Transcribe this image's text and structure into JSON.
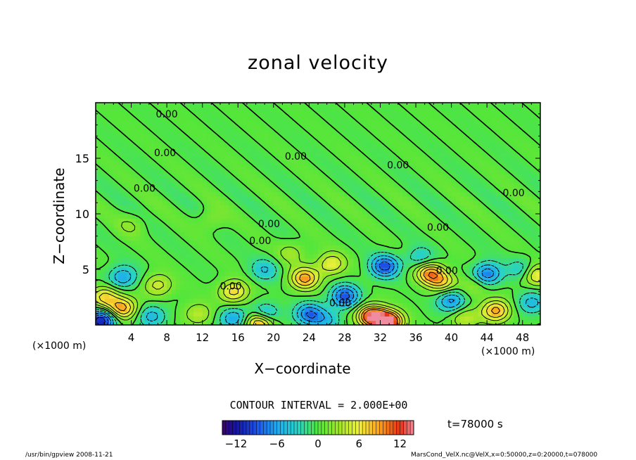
{
  "chart_data": {
    "type": "heatmap",
    "title": "zonal velocity",
    "xlabel": "X−coordinate",
    "ylabel": "Z−coordinate",
    "x_unit_label_left": "(×1000 m)",
    "x_unit_label_right": "(×1000 m)",
    "xlim": [
      0,
      50
    ],
    "ylim": [
      0,
      20
    ],
    "xticks": [
      4,
      8,
      12,
      16,
      20,
      24,
      28,
      32,
      36,
      40,
      44,
      48
    ],
    "yticks": [
      5,
      10,
      15
    ],
    "contour_interval_text": "CONTOUR INTERVAL = 2.000E+00",
    "time_label": "t=78000 s",
    "colorbar": {
      "range": [
        -14,
        14
      ],
      "ticks": [
        -12,
        -6,
        0,
        6,
        12
      ]
    },
    "contour_labels": [
      {
        "text": "0.00",
        "x": 8.0,
        "z": 19.0
      },
      {
        "text": "0.00",
        "x": 7.8,
        "z": 15.5
      },
      {
        "text": "0.00",
        "x": 22.5,
        "z": 15.2
      },
      {
        "text": "0.00",
        "x": 34.0,
        "z": 14.4
      },
      {
        "text": "0.00",
        "x": 5.5,
        "z": 12.3
      },
      {
        "text": "0.00",
        "x": 47.0,
        "z": 11.9
      },
      {
        "text": "0.00",
        "x": 19.5,
        "z": 9.1
      },
      {
        "text": "0.00",
        "x": 38.5,
        "z": 8.8
      },
      {
        "text": "0.00",
        "x": 18.5,
        "z": 7.6
      },
      {
        "text": "0.00",
        "x": 39.5,
        "z": 4.9
      },
      {
        "text": "0.00",
        "x": 15.2,
        "z": 3.5
      },
      {
        "text": "0.00",
        "x": 27.5,
        "z": 2.0
      }
    ],
    "features": [
      {
        "x": 3.0,
        "z": 4.3,
        "u": -6
      },
      {
        "x": 1.0,
        "z": 2.5,
        "u": 7
      },
      {
        "x": 3.0,
        "z": 1.5,
        "u": 9
      },
      {
        "x": 0.6,
        "z": 0.4,
        "u": -12
      },
      {
        "x": 7.0,
        "z": 3.6,
        "u": 5
      },
      {
        "x": 6.3,
        "z": 0.8,
        "u": -5
      },
      {
        "x": 11.5,
        "z": 1.0,
        "u": 4
      },
      {
        "x": 15.5,
        "z": 3.0,
        "u": 7
      },
      {
        "x": 15.5,
        "z": 0.6,
        "u": -6
      },
      {
        "x": 19.0,
        "z": 5.0,
        "u": -4
      },
      {
        "x": 19.0,
        "z": 0.9,
        "u": -8
      },
      {
        "x": 18.5,
        "z": 0.3,
        "u": 12
      },
      {
        "x": 23.5,
        "z": 4.2,
        "u": 9
      },
      {
        "x": 24.0,
        "z": 1.0,
        "u": -8
      },
      {
        "x": 26.5,
        "z": 5.5,
        "u": 6
      },
      {
        "x": 28.0,
        "z": 2.6,
        "u": -9
      },
      {
        "x": 26.0,
        "z": 0.4,
        "u": -4
      },
      {
        "x": 31.0,
        "z": 0.8,
        "u": 13
      },
      {
        "x": 33.0,
        "z": 0.3,
        "u": 14
      },
      {
        "x": 32.5,
        "z": 5.3,
        "u": -9
      },
      {
        "x": 36.5,
        "z": 6.0,
        "u": -4
      },
      {
        "x": 37.5,
        "z": 4.7,
        "u": 9
      },
      {
        "x": 39.0,
        "z": 3.9,
        "u": 6
      },
      {
        "x": 40.0,
        "z": 2.2,
        "u": -7
      },
      {
        "x": 41.5,
        "z": 0.6,
        "u": 4
      },
      {
        "x": 44.0,
        "z": 4.6,
        "u": -8
      },
      {
        "x": 45.0,
        "z": 1.3,
        "u": 9
      },
      {
        "x": 42.5,
        "z": 3.5,
        "u": 3
      },
      {
        "x": 48.0,
        "z": 5.0,
        "u": -4
      },
      {
        "x": 49.5,
        "z": 4.5,
        "u": 7
      },
      {
        "x": 49.0,
        "z": 2.0,
        "u": -5
      },
      {
        "x": 22.0,
        "z": 6.5,
        "u": 3
      },
      {
        "x": 13.0,
        "z": 9.5,
        "u": 2
      },
      {
        "x": 4.0,
        "z": 9.0,
        "u": 2
      }
    ]
  },
  "footer": {
    "left": "/usr/bin/gpview  2008-11-21",
    "right": "MarsCond_VelX.nc@VelX,x=0:50000,z=0:20000,t=078000"
  }
}
